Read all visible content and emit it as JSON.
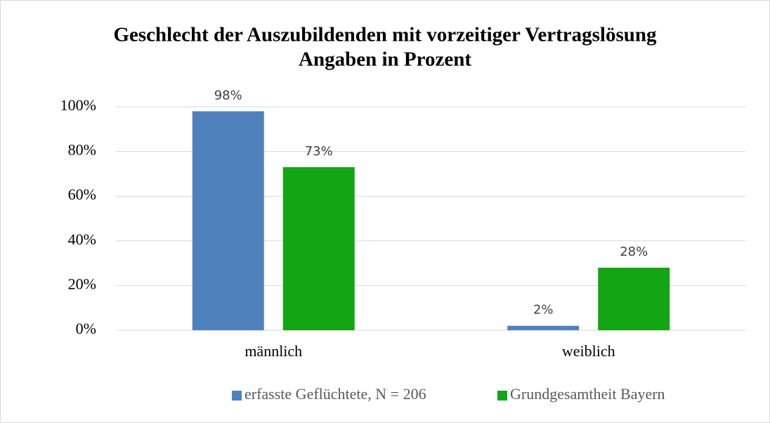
{
  "chart_data": {
    "type": "bar",
    "title": "Geschlecht der Auszubildenden mit vorzeitiger Vertragslösung",
    "subtitle": "Angaben in Prozent",
    "categories": [
      "männlich",
      "weiblich"
    ],
    "series": [
      {
        "name": "erfasste Geflüchtete, N = 206",
        "color": "#4f81bd",
        "values": [
          98,
          2
        ],
        "value_labels": [
          "98%",
          "2%"
        ]
      },
      {
        "name": "Grundgesamtheit Bayern",
        "color": "#14a514",
        "values": [
          73,
          28
        ],
        "value_labels": [
          "73%",
          "28%"
        ]
      }
    ],
    "ylim": [
      0,
      100
    ],
    "yticks": [
      {
        "value": 0,
        "label": "0%"
      },
      {
        "value": 20,
        "label": "20%"
      },
      {
        "value": 40,
        "label": "40%"
      },
      {
        "value": 60,
        "label": "60%"
      },
      {
        "value": 80,
        "label": "80%"
      },
      {
        "value": 100,
        "label": "100%"
      }
    ],
    "grid": true,
    "legend": "bottom"
  }
}
